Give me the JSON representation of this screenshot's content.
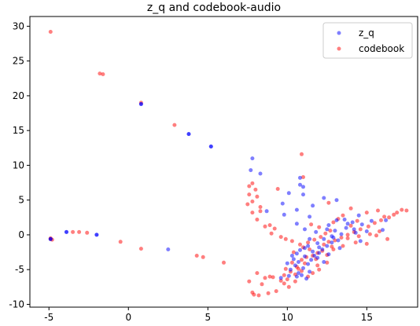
{
  "chart_data": {
    "type": "scatter",
    "title": "z_q and codebook-audio",
    "xlabel": "",
    "ylabel": "",
    "xlim": [
      -6.2,
      18.2
    ],
    "ylim": [
      -10.4,
      31.4
    ],
    "xticks": [
      -5,
      0,
      5,
      10,
      15
    ],
    "yticks": [
      -10,
      -5,
      0,
      5,
      10,
      15,
      20,
      25,
      30
    ],
    "grid": false,
    "legend_position": "top-right",
    "series": [
      {
        "name": "z_q",
        "color": "#0000ff",
        "alpha": 0.5,
        "points": [
          [
            -4.9,
            -0.6
          ],
          [
            -4.9,
            -0.6
          ],
          [
            -3.9,
            0.4
          ],
          [
            -3.9,
            0.4
          ],
          [
            -2.0,
            0.0
          ],
          [
            -2.0,
            0.0
          ],
          [
            0.8,
            18.8
          ],
          [
            0.8,
            18.8
          ],
          [
            3.8,
            14.5
          ],
          [
            3.8,
            14.5
          ],
          [
            5.2,
            12.7
          ],
          [
            5.2,
            12.7
          ],
          [
            2.5,
            -2.1
          ],
          [
            7.8,
            11.0
          ],
          [
            7.7,
            9.3
          ],
          [
            8.3,
            8.8
          ],
          [
            10.8,
            8.2
          ],
          [
            10.8,
            7.2
          ],
          [
            11.0,
            6.9
          ],
          [
            10.1,
            6.0
          ],
          [
            11.0,
            5.8
          ],
          [
            9.7,
            4.5
          ],
          [
            11.6,
            4.2
          ],
          [
            10.6,
            3.6
          ],
          [
            8.7,
            3.4
          ],
          [
            9.8,
            2.9
          ],
          [
            11.4,
            2.6
          ],
          [
            10.6,
            1.6
          ],
          [
            11.1,
            0.8
          ],
          [
            12.5,
            0.8
          ],
          [
            13.1,
            2.1
          ],
          [
            13.6,
            2.2
          ],
          [
            14.1,
            1.8
          ],
          [
            14.5,
            2.8
          ],
          [
            14.7,
            1.5
          ],
          [
            15.3,
            2.0
          ],
          [
            16.2,
            2.1
          ],
          [
            16.0,
            0.7
          ],
          [
            15.0,
            0.5
          ],
          [
            14.3,
            0.3
          ],
          [
            13.4,
            0.1
          ],
          [
            12.8,
            -0.2
          ],
          [
            12.3,
            -0.6
          ],
          [
            11.9,
            -1.2
          ],
          [
            11.3,
            -1.6
          ],
          [
            11.1,
            -1.9
          ],
          [
            10.8,
            -2.2
          ],
          [
            10.6,
            -2.7
          ],
          [
            10.3,
            -3.0
          ],
          [
            10.4,
            -3.5
          ],
          [
            10.7,
            -3.9
          ],
          [
            10.5,
            -4.4
          ],
          [
            10.2,
            -5.0
          ],
          [
            10.7,
            -5.5
          ],
          [
            11.0,
            -4.8
          ],
          [
            11.3,
            -4.2
          ],
          [
            11.5,
            -3.6
          ],
          [
            11.7,
            -3.0
          ],
          [
            12.0,
            -2.6
          ],
          [
            12.2,
            -2.1
          ],
          [
            12.5,
            -1.6
          ],
          [
            12.8,
            -1.1
          ],
          [
            13.2,
            -0.8
          ],
          [
            13.0,
            0.6
          ],
          [
            12.6,
            1.4
          ],
          [
            13.7,
            1.0
          ],
          [
            14.2,
            0.8
          ],
          [
            11.6,
            -2.4
          ],
          [
            11.9,
            -3.3
          ],
          [
            12.3,
            -3.9
          ],
          [
            11.4,
            -5.3
          ],
          [
            10.9,
            -5.8
          ],
          [
            10.6,
            -6.0
          ],
          [
            11.2,
            -6.3
          ],
          [
            10.1,
            -5.9
          ],
          [
            9.6,
            -6.2
          ],
          [
            10.0,
            -4.1
          ],
          [
            11.1,
            -3.1
          ],
          [
            12.6,
            -2.8
          ],
          [
            13.3,
            -1.9
          ],
          [
            14.6,
            -0.9
          ],
          [
            13.8,
            1.6
          ],
          [
            13.1,
            5.0
          ],
          [
            12.3,
            5.3
          ],
          [
            12.9,
            -0.4
          ],
          [
            11.8,
            0.4
          ],
          [
            11.4,
            -0.6
          ],
          [
            12.0,
            -1.8
          ]
        ]
      },
      {
        "name": "codebook",
        "color": "#ff0000",
        "alpha": 0.5,
        "points": [
          [
            -4.9,
            29.2
          ],
          [
            -1.8,
            23.2
          ],
          [
            -1.6,
            23.1
          ],
          [
            0.8,
            19.0
          ],
          [
            2.9,
            15.8
          ],
          [
            -4.9,
            -0.6
          ],
          [
            -4.8,
            -0.7
          ],
          [
            -4.9,
            -0.5
          ],
          [
            -3.5,
            0.4
          ],
          [
            -3.1,
            0.4
          ],
          [
            -2.6,
            0.3
          ],
          [
            -0.5,
            -1.0
          ],
          [
            0.8,
            -2.0
          ],
          [
            4.3,
            -3.0
          ],
          [
            4.7,
            -3.2
          ],
          [
            6.0,
            -4.0
          ],
          [
            8.1,
            -5.5
          ],
          [
            8.9,
            -6.0
          ],
          [
            9.1,
            -6.1
          ],
          [
            8.6,
            -6.2
          ],
          [
            7.6,
            -6.7
          ],
          [
            8.4,
            -7.1
          ],
          [
            7.8,
            -8.3
          ],
          [
            7.9,
            -8.6
          ],
          [
            8.2,
            -8.7
          ],
          [
            8.8,
            -8.4
          ],
          [
            9.3,
            -8.1
          ],
          [
            10.1,
            -7.5
          ],
          [
            10.5,
            -6.7
          ],
          [
            11.3,
            -6.0
          ],
          [
            9.8,
            -5.8
          ],
          [
            10.2,
            -5.3
          ],
          [
            9.9,
            -4.9
          ],
          [
            10.6,
            -4.6
          ],
          [
            10.3,
            -4.0
          ],
          [
            10.9,
            -3.6
          ],
          [
            11.2,
            -3.2
          ],
          [
            11.6,
            -3.0
          ],
          [
            11.9,
            -2.6
          ],
          [
            12.2,
            -2.3
          ],
          [
            11.4,
            -2.1
          ],
          [
            11.0,
            -1.8
          ],
          [
            10.8,
            -1.4
          ],
          [
            11.3,
            -1.1
          ],
          [
            11.7,
            -0.7
          ],
          [
            12.1,
            -0.3
          ],
          [
            12.4,
            0.2
          ],
          [
            12.7,
            0.6
          ],
          [
            12.0,
            1.1
          ],
          [
            11.5,
            1.5
          ],
          [
            12.9,
            1.8
          ],
          [
            13.2,
            2.3
          ],
          [
            12.6,
            -1.0
          ],
          [
            13.0,
            -0.8
          ],
          [
            13.4,
            -0.4
          ],
          [
            13.8,
            0.0
          ],
          [
            14.2,
            0.4
          ],
          [
            14.6,
            0.8
          ],
          [
            15.1,
            1.2
          ],
          [
            15.5,
            1.7
          ],
          [
            15.9,
            2.1
          ],
          [
            16.4,
            2.5
          ],
          [
            17.2,
            3.6
          ],
          [
            17.5,
            3.5
          ],
          [
            16.7,
            2.9
          ],
          [
            15.8,
            0.5
          ],
          [
            15.2,
            0.1
          ],
          [
            14.5,
            -0.2
          ],
          [
            13.8,
            -0.5
          ],
          [
            12.8,
            -1.7
          ],
          [
            12.5,
            -2.9
          ],
          [
            11.8,
            -3.5
          ],
          [
            11.1,
            -4.1
          ],
          [
            10.7,
            -4.9
          ],
          [
            10.5,
            -5.7
          ],
          [
            10.0,
            -6.4
          ],
          [
            9.8,
            -7.0
          ],
          [
            9.6,
            -6.6
          ],
          [
            7.6,
            7.0
          ],
          [
            7.8,
            7.4
          ],
          [
            8.0,
            6.5
          ],
          [
            7.6,
            5.8
          ],
          [
            8.1,
            5.5
          ],
          [
            7.8,
            4.8
          ],
          [
            7.5,
            4.4
          ],
          [
            8.3,
            4.0
          ],
          [
            7.8,
            3.2
          ],
          [
            8.3,
            3.4
          ],
          [
            8.1,
            2.2
          ],
          [
            8.6,
            1.2
          ],
          [
            8.9,
            1.4
          ],
          [
            9.2,
            0.9
          ],
          [
            9.0,
            0.2
          ],
          [
            9.6,
            -0.3
          ],
          [
            9.9,
            -0.6
          ],
          [
            10.3,
            -0.9
          ],
          [
            9.4,
            6.6
          ],
          [
            10.9,
            11.6
          ],
          [
            11.0,
            8.3
          ],
          [
            14.0,
            1.3
          ],
          [
            14.4,
            2.0
          ],
          [
            13.5,
            2.8
          ],
          [
            15.7,
            3.5
          ],
          [
            15.0,
            3.2
          ],
          [
            14.0,
            3.8
          ],
          [
            16.9,
            3.2
          ],
          [
            16.1,
            2.6
          ],
          [
            11.9,
            -4.4
          ],
          [
            12.5,
            -4.0
          ],
          [
            12.0,
            -5.0
          ],
          [
            11.6,
            -5.5
          ],
          [
            10.9,
            -5.2
          ],
          [
            10.4,
            -2.5
          ],
          [
            12.3,
            -1.4
          ],
          [
            12.9,
            -2.1
          ],
          [
            13.5,
            -1.6
          ],
          [
            14.3,
            -1.1
          ],
          [
            15.0,
            -1.3
          ],
          [
            15.6,
            -0.1
          ],
          [
            16.3,
            -0.6
          ],
          [
            12.6,
            4.6
          ]
        ]
      }
    ]
  }
}
